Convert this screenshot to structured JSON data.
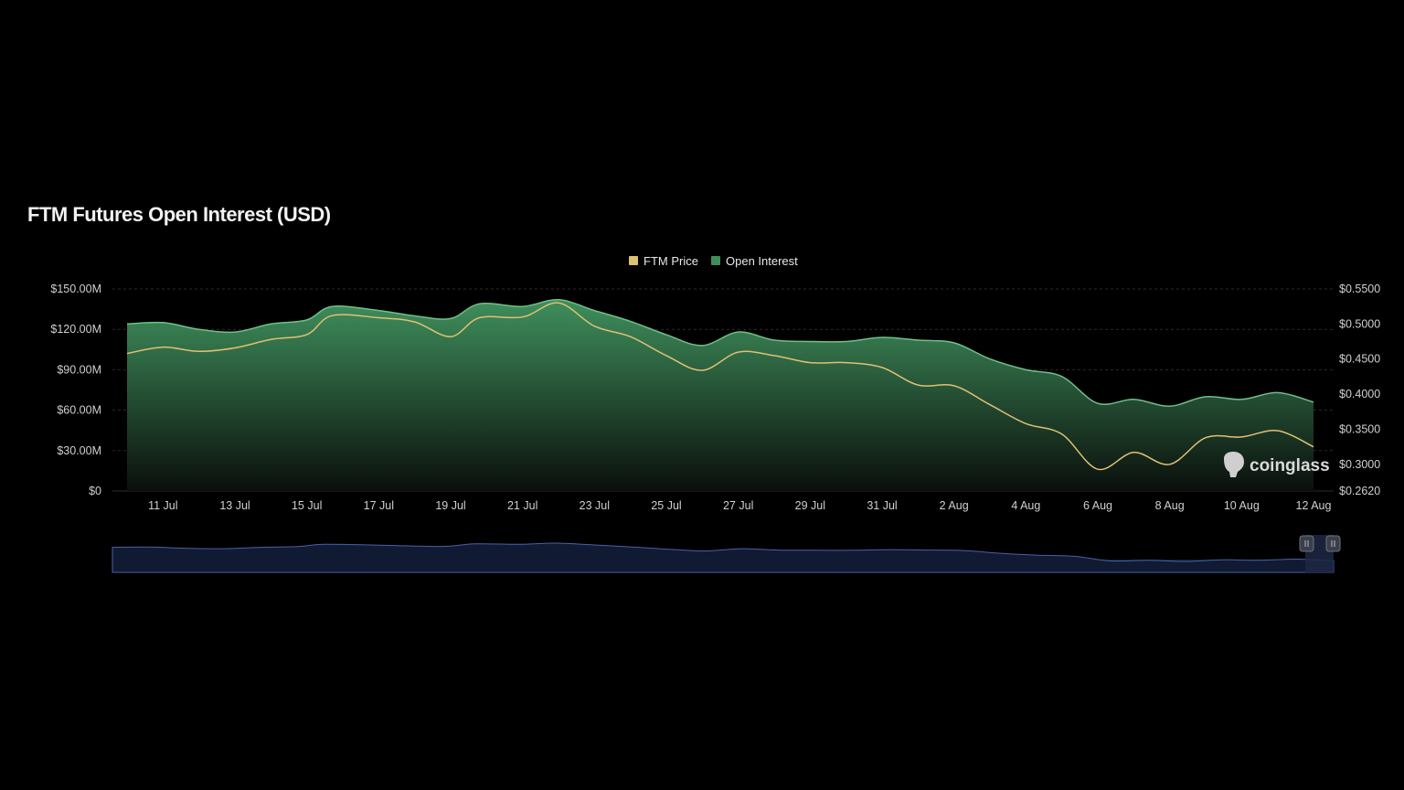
{
  "title": "FTM Futures Open Interest (USD)",
  "watermark": "coinglass",
  "colors": {
    "background": "#000000",
    "price_line": "#e0c074",
    "oi_fill_top": "#3f8f5c",
    "oi_fill_bottom": "#0a0f0c",
    "oi_line": "#6fbf8a",
    "gridline": "#2a2a2a",
    "navigator_fill": "#111a33",
    "navigator_line": "#4860a8"
  },
  "chart_data": {
    "type": "area",
    "legend": [
      "FTM Price",
      "Open Interest"
    ],
    "legend_position": "top-center",
    "grid": true,
    "x_tick_labels": [
      "11 Jul",
      "13 Jul",
      "15 Jul",
      "17 Jul",
      "19 Jul",
      "21 Jul",
      "23 Jul",
      "25 Jul",
      "27 Jul",
      "29 Jul",
      "31 Jul",
      "2 Aug",
      "4 Aug",
      "6 Aug",
      "8 Aug",
      "10 Aug",
      "12 Aug"
    ],
    "x_range": [
      "10 Jul",
      "12 Aug"
    ],
    "y_left": {
      "ticks": [
        "$0",
        "$30.00M",
        "$60.00M",
        "$90.00M",
        "$120.00M",
        "$150.00M"
      ],
      "range": [
        0,
        150
      ]
    },
    "y_right": {
      "ticks": [
        "$0.2620",
        "$0.3000",
        "$0.3500",
        "$0.4000",
        "$0.4500",
        "$0.5000",
        "$0.5500"
      ],
      "range": [
        0.262,
        0.55
      ]
    },
    "series": [
      {
        "name": "Open Interest",
        "unit": "USD millions",
        "axis": "left",
        "points": [
          [
            "10 Jul",
            124
          ],
          [
            "11 Jul",
            125
          ],
          [
            "12 Jul",
            120
          ],
          [
            "13 Jul",
            118
          ],
          [
            "14 Jul",
            124
          ],
          [
            "15 Jul",
            127
          ],
          [
            "15.7 Jul",
            137
          ],
          [
            "17 Jul",
            134
          ],
          [
            "18 Jul",
            130
          ],
          [
            "19 Jul",
            128
          ],
          [
            "19.8 Jul",
            139
          ],
          [
            "21 Jul",
            137
          ],
          [
            "22 Jul",
            142
          ],
          [
            "23 Jul",
            134
          ],
          [
            "24 Jul",
            126
          ],
          [
            "25 Jul",
            116
          ],
          [
            "26 Jul",
            108
          ],
          [
            "27 Jul",
            118
          ],
          [
            "28 Jul",
            112
          ],
          [
            "29 Jul",
            111
          ],
          [
            "30 Jul",
            111
          ],
          [
            "31 Jul",
            114
          ],
          [
            "1 Aug",
            112
          ],
          [
            "2 Aug",
            110
          ],
          [
            "3 Aug",
            98
          ],
          [
            "4 Aug",
            90
          ],
          [
            "5 Aug",
            85
          ],
          [
            "6 Aug",
            65
          ],
          [
            "7 Aug",
            68
          ],
          [
            "8 Aug",
            63
          ],
          [
            "9 Aug",
            70
          ],
          [
            "10 Aug",
            68
          ],
          [
            "11 Aug",
            73
          ],
          [
            "12 Aug",
            66
          ]
        ]
      },
      {
        "name": "FTM Price",
        "unit": "USD",
        "axis": "right",
        "points": [
          [
            "10 Jul",
            0.458
          ],
          [
            "11 Jul",
            0.467
          ],
          [
            "12 Jul",
            0.461
          ],
          [
            "13 Jul",
            0.466
          ],
          [
            "14 Jul",
            0.478
          ],
          [
            "15 Jul",
            0.485
          ],
          [
            "15.7 Jul",
            0.512
          ],
          [
            "17 Jul",
            0.509
          ],
          [
            "18 Jul",
            0.503
          ],
          [
            "19 Jul",
            0.482
          ],
          [
            "19.8 Jul",
            0.509
          ],
          [
            "21 Jul",
            0.51
          ],
          [
            "22 Jul",
            0.53
          ],
          [
            "23 Jul",
            0.497
          ],
          [
            "24 Jul",
            0.482
          ],
          [
            "25 Jul",
            0.455
          ],
          [
            "26 Jul",
            0.434
          ],
          [
            "27 Jul",
            0.46
          ],
          [
            "28 Jul",
            0.455
          ],
          [
            "29 Jul",
            0.445
          ],
          [
            "30 Jul",
            0.445
          ],
          [
            "31 Jul",
            0.438
          ],
          [
            "1 Aug",
            0.413
          ],
          [
            "2 Aug",
            0.412
          ],
          [
            "3 Aug",
            0.385
          ],
          [
            "4 Aug",
            0.358
          ],
          [
            "5 Aug",
            0.343
          ],
          [
            "6 Aug",
            0.293
          ],
          [
            "7 Aug",
            0.317
          ],
          [
            "8 Aug",
            0.3
          ],
          [
            "9 Aug",
            0.338
          ],
          [
            "10 Aug",
            0.339
          ],
          [
            "11 Aug",
            0.348
          ],
          [
            "12 Aug",
            0.325
          ]
        ]
      }
    ]
  }
}
